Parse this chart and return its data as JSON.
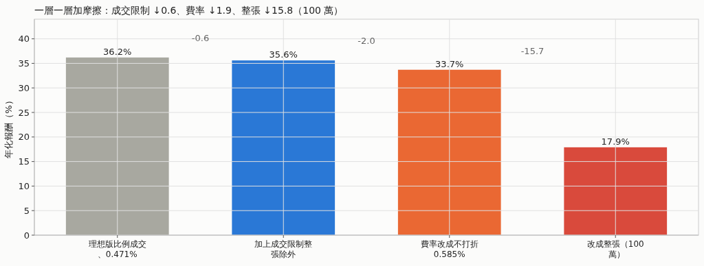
{
  "chart_data": {
    "type": "bar",
    "title": "一層一層加摩擦：成交限制 ↓0.6、費率 ↓1.9、整張 ↓15.8（100 萬）",
    "ylabel": "年化報酬（%）",
    "categories": [
      "理想版比例成交、0.471%",
      "加上成交限制整張除外",
      "費率改成不打折0.585%",
      "改成整張（100 萬）"
    ],
    "values": [
      36.2,
      35.6,
      33.7,
      17.9
    ],
    "colors": [
      "#a8a8a0",
      "#2a78d6",
      "#ea6833",
      "#d94a3c"
    ],
    "value_labels": [
      "36.2%",
      "35.6%",
      "33.7%",
      "17.9%"
    ],
    "annotations": [
      "-0.6",
      "-2.0",
      "-15.7"
    ],
    "ylim": [
      0,
      44
    ],
    "yticks": [
      0,
      5,
      10,
      15,
      20,
      25,
      30,
      35,
      40
    ],
    "grid": true
  }
}
